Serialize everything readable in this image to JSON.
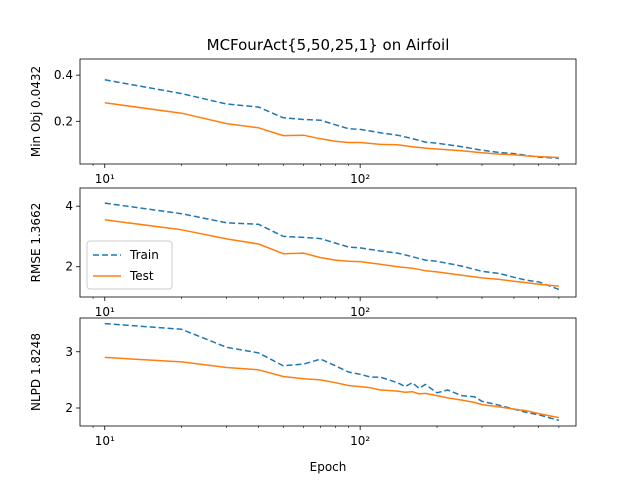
{
  "title": "MCFourAct{5,50,25,1} on Airfoil",
  "xlabel": "Epoch",
  "colors": {
    "train": "#1f77b4",
    "test": "#ff7f0e",
    "axis": "#000000"
  },
  "legend": {
    "train": "Train",
    "test": "Test",
    "location": "lower-left of middle panel"
  },
  "chart_data": [
    {
      "type": "line",
      "panel": "min-obj",
      "ylabel": "Min Obj 0.0432",
      "xscale": "log",
      "xlim": [
        8,
        700
      ],
      "ylim": [
        0.015,
        0.47
      ],
      "xticks": [
        10,
        100
      ],
      "xtick_labels": [
        "10¹",
        "10²"
      ],
      "yticks": [
        0.2,
        0.4
      ],
      "ytick_labels": [
        "0.2",
        "0.4"
      ],
      "series": [
        {
          "name": "Train",
          "style": "dashed",
          "x": [
            10,
            20,
            30,
            40,
            50,
            60,
            70,
            80,
            90,
            100,
            120,
            140,
            160,
            180,
            200,
            250,
            300,
            350,
            400,
            450,
            500,
            600
          ],
          "y": [
            0.38,
            0.32,
            0.275,
            0.262,
            0.215,
            0.208,
            0.205,
            0.185,
            0.168,
            0.165,
            0.15,
            0.14,
            0.125,
            0.11,
            0.105,
            0.09,
            0.075,
            0.065,
            0.06,
            0.052,
            0.045,
            0.04
          ]
        },
        {
          "name": "Test",
          "style": "solid",
          "x": [
            10,
            20,
            30,
            40,
            50,
            60,
            70,
            80,
            90,
            100,
            120,
            140,
            160,
            180,
            200,
            250,
            300,
            350,
            400,
            450,
            500,
            600
          ],
          "y": [
            0.28,
            0.235,
            0.19,
            0.172,
            0.138,
            0.14,
            0.124,
            0.114,
            0.108,
            0.108,
            0.1,
            0.098,
            0.09,
            0.084,
            0.08,
            0.072,
            0.064,
            0.058,
            0.055,
            0.05,
            0.047,
            0.043
          ]
        }
      ]
    },
    {
      "type": "line",
      "panel": "rmse",
      "ylabel": "RMSE 1.3662",
      "xscale": "log",
      "xlim": [
        8,
        700
      ],
      "ylim": [
        1.0,
        4.6
      ],
      "xticks": [
        10,
        100
      ],
      "xtick_labels": [
        "10¹",
        "10²"
      ],
      "yticks": [
        2,
        4
      ],
      "ytick_labels": [
        "2",
        "4"
      ],
      "series": [
        {
          "name": "Train",
          "style": "dashed",
          "x": [
            10,
            20,
            30,
            40,
            50,
            60,
            70,
            80,
            90,
            100,
            120,
            140,
            160,
            180,
            200,
            250,
            300,
            350,
            400,
            450,
            500,
            600
          ],
          "y": [
            4.1,
            3.75,
            3.45,
            3.4,
            3.0,
            2.97,
            2.93,
            2.78,
            2.65,
            2.62,
            2.52,
            2.45,
            2.33,
            2.22,
            2.18,
            2.02,
            1.85,
            1.78,
            1.65,
            1.55,
            1.5,
            1.25
          ]
        },
        {
          "name": "Test",
          "style": "solid",
          "x": [
            10,
            20,
            30,
            40,
            50,
            60,
            70,
            80,
            90,
            100,
            120,
            140,
            160,
            180,
            200,
            250,
            300,
            350,
            400,
            450,
            500,
            600
          ],
          "y": [
            3.55,
            3.22,
            2.92,
            2.75,
            2.43,
            2.45,
            2.3,
            2.22,
            2.18,
            2.17,
            2.08,
            2.0,
            1.95,
            1.87,
            1.83,
            1.72,
            1.63,
            1.58,
            1.52,
            1.47,
            1.42,
            1.36
          ]
        }
      ]
    },
    {
      "type": "line",
      "panel": "nlpd",
      "ylabel": "NLPD 1.8248",
      "xlabel": "Epoch",
      "xscale": "log",
      "xlim": [
        8,
        700
      ],
      "ylim": [
        1.68,
        3.6
      ],
      "xticks": [
        10,
        100
      ],
      "xtick_labels": [
        "10¹",
        "10²"
      ],
      "yticks": [
        2,
        3
      ],
      "ytick_labels": [
        "2",
        "3"
      ],
      "series": [
        {
          "name": "Train",
          "style": "dashed",
          "x": [
            10,
            20,
            30,
            40,
            50,
            60,
            70,
            80,
            90,
            100,
            110,
            120,
            140,
            150,
            160,
            170,
            180,
            200,
            220,
            250,
            280,
            300,
            350,
            400,
            450,
            500,
            600
          ],
          "y": [
            3.5,
            3.4,
            3.08,
            2.98,
            2.75,
            2.78,
            2.87,
            2.75,
            2.64,
            2.6,
            2.55,
            2.55,
            2.45,
            2.38,
            2.45,
            2.35,
            2.42,
            2.27,
            2.32,
            2.22,
            2.2,
            2.12,
            2.05,
            1.98,
            1.92,
            1.88,
            1.78
          ]
        },
        {
          "name": "Test",
          "style": "solid",
          "x": [
            10,
            20,
            30,
            40,
            50,
            60,
            70,
            80,
            90,
            100,
            110,
            120,
            140,
            150,
            160,
            170,
            180,
            200,
            220,
            250,
            280,
            300,
            350,
            400,
            450,
            500,
            600
          ],
          "y": [
            2.9,
            2.82,
            2.72,
            2.68,
            2.56,
            2.52,
            2.5,
            2.45,
            2.4,
            2.38,
            2.36,
            2.32,
            2.3,
            2.28,
            2.29,
            2.25,
            2.26,
            2.22,
            2.18,
            2.14,
            2.1,
            2.06,
            2.02,
            1.98,
            1.95,
            1.9,
            1.83
          ]
        }
      ]
    }
  ]
}
